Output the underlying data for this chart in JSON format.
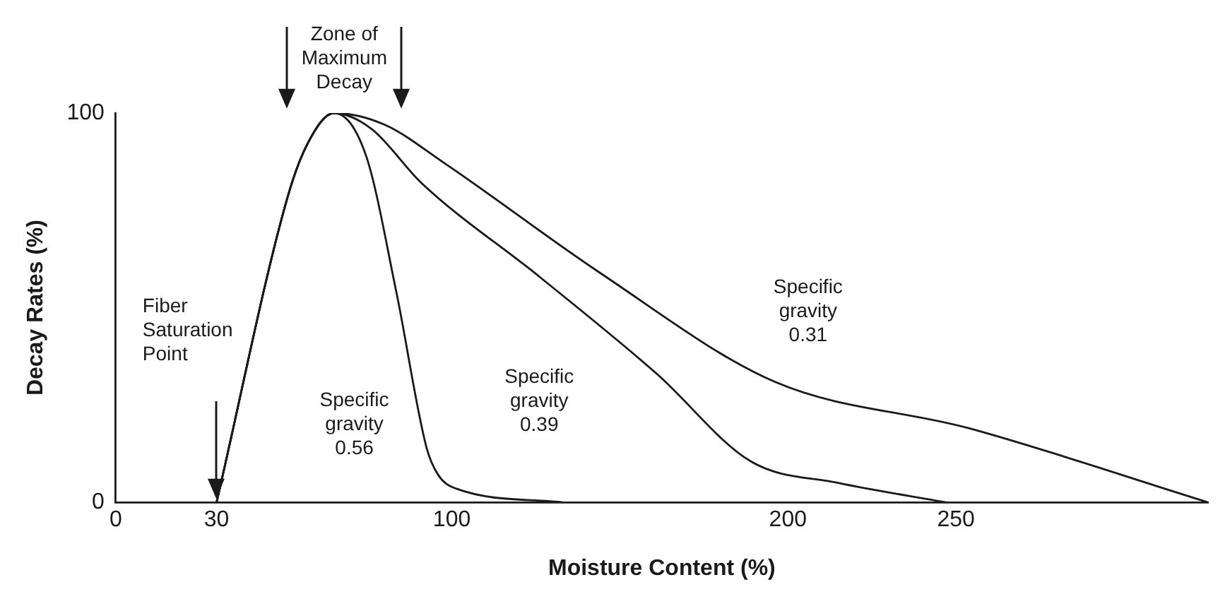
{
  "chart_data": {
    "type": "line",
    "xlabel": "Moisture Content (%)",
    "ylabel": "Decay Rates (%)",
    "xlim": [
      0,
      325
    ],
    "xticks": [
      0,
      30,
      100,
      200,
      250
    ],
    "ylim": [
      0,
      100
    ],
    "yticks": [
      0,
      100
    ],
    "grid": false,
    "legend": false,
    "series": [
      {
        "color": "#1a1a1a",
        "x": [
          30,
          51,
          57,
          65,
          74.5,
          83.5,
          92.5,
          96,
          101.4,
          133
        ],
        "values": [
          0,
          78,
          92,
          100,
          89,
          54,
          14,
          7,
          3.5,
          0
        ]
      },
      {
        "color": "#1a1a1a",
        "x": [
          30,
          51,
          57,
          65,
          76,
          91,
          126,
          161,
          189,
          215,
          247
        ],
        "values": [
          0,
          78,
          92,
          100,
          96,
          82,
          58,
          33,
          10.5,
          5,
          0
        ]
      },
      {
        "color": "#1a1a1a",
        "x": [
          30,
          51,
          57,
          65,
          80,
          98,
          144,
          196,
          254,
          325
        ],
        "values": [
          0,
          78,
          92,
          100,
          97,
          87,
          59,
          31,
          19,
          0
        ]
      }
    ],
    "annotations": [
      "Zone of\nMaximum\nDecay",
      "Fiber\nSaturation\nPoint",
      "Specific\ngravity\n0.56",
      "Specific\ngravity\n0.39",
      "Specific\ngravity\n0.31"
    ]
  }
}
